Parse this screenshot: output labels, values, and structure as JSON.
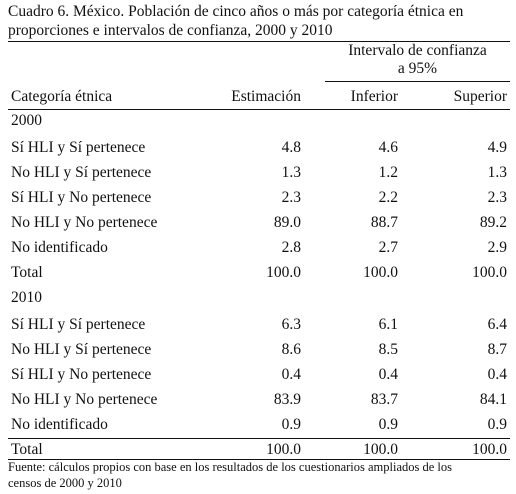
{
  "caption": {
    "line1": "Cuadro 6. México. Población de cinco años o más por categoría étnica en",
    "line2": "proporciones e intervalos de confianza, 2000 y 2010"
  },
  "header": {
    "ci_line1": "Intervalo de confianza",
    "ci_line2": "a 95%",
    "col_category": "Categoría étnica",
    "col_estimate": "Estimación",
    "col_lower": "Inferior",
    "col_upper": "Superior"
  },
  "sections": [
    {
      "year": "2000",
      "rows": [
        {
          "category": "Sí HLI y Sí pertenece",
          "estimate": "4.8",
          "lower": "4.6",
          "upper": "4.9"
        },
        {
          "category": "No HLI y Sí pertenece",
          "estimate": "1.3",
          "lower": "1.2",
          "upper": "1.3"
        },
        {
          "category": "Sí HLI y No pertenece",
          "estimate": "2.3",
          "lower": "2.2",
          "upper": "2.3"
        },
        {
          "category": "No HLI y No pertenece",
          "estimate": "89.0",
          "lower": "88.7",
          "upper": "89.2"
        },
        {
          "category": "No identificado",
          "estimate": "2.8",
          "lower": "2.7",
          "upper": "2.9"
        },
        {
          "category": "Total",
          "estimate": "100.0",
          "lower": "100.0",
          "upper": "100.0"
        }
      ]
    },
    {
      "year": "2010",
      "rows": [
        {
          "category": "Sí HLI y Sí pertenece",
          "estimate": "6.3",
          "lower": "6.1",
          "upper": "6.4"
        },
        {
          "category": "No HLI y Sí pertenece",
          "estimate": "8.6",
          "lower": "8.5",
          "upper": "8.7"
        },
        {
          "category": "Sí HLI y No pertenece",
          "estimate": "0.4",
          "lower": "0.4",
          "upper": "0.4"
        },
        {
          "category": "No HLI y No pertenece",
          "estimate": "83.9",
          "lower": "83.7",
          "upper": "84.1"
        },
        {
          "category": "No identificado",
          "estimate": "0.9",
          "lower": "0.9",
          "upper": "0.9"
        },
        {
          "category": "Total",
          "estimate": "100.0",
          "lower": "100.0",
          "upper": "100.0"
        }
      ]
    }
  ],
  "footnote": {
    "line1": "Fuente: cálculos propios con base en los resultados de los cuestionarios ampliados de los",
    "line2": "censos de 2000 y 2010"
  }
}
